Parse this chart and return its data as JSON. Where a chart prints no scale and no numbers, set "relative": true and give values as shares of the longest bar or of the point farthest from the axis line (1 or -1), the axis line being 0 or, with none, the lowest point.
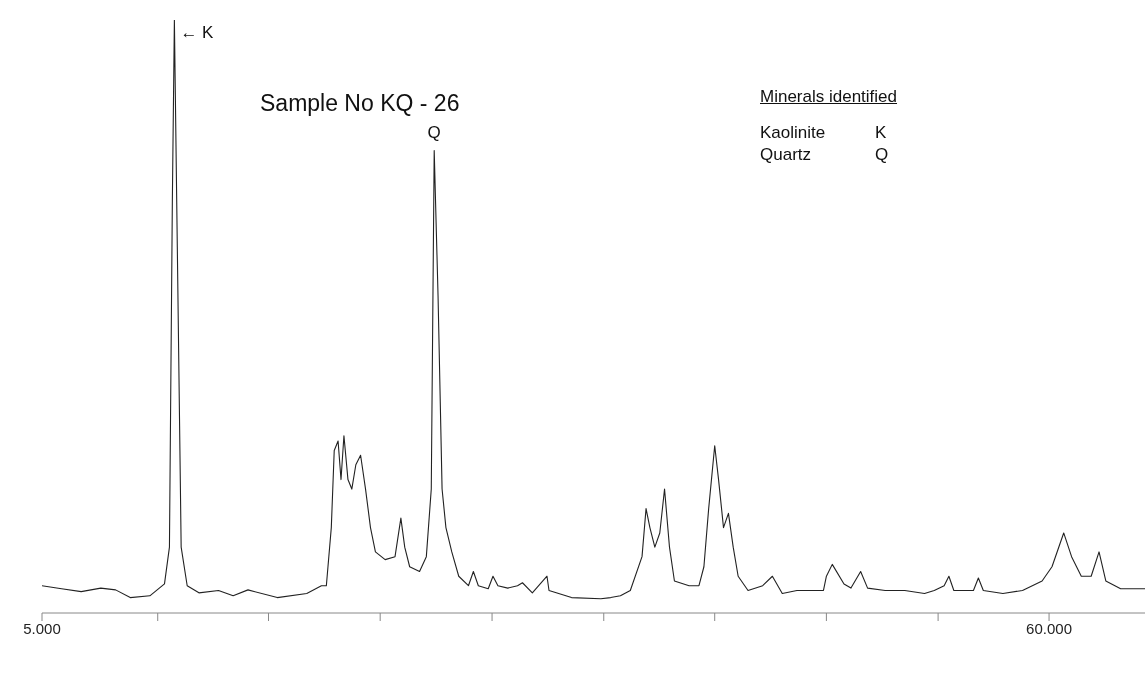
{
  "chart_data": {
    "type": "line",
    "title": "Sample No KQ - 26",
    "relative": true,
    "color": "#222222",
    "marker": "none",
    "line_style": "solid",
    "grid": false,
    "legend": false,
    "x": [
      5.0,
      6.07,
      7.14,
      8.21,
      9.02,
      9.82,
      10.89,
      11.69,
      11.96,
      12.12,
      12.23,
      12.39,
      12.6,
      12.93,
      13.57,
      14.64,
      15.44,
      16.25,
      17.85,
      19.46,
      20.26,
      20.53,
      20.8,
      20.96,
      21.17,
      21.33,
      21.49,
      21.71,
      21.92,
      22.14,
      22.4,
      22.67,
      22.94,
      23.21,
      23.74,
      24.28,
      24.6,
      24.81,
      25.08,
      25.62,
      25.99,
      26.26,
      26.42,
      26.63,
      26.85,
      27.06,
      27.38,
      27.76,
      28.29,
      28.56,
      28.83,
      29.37,
      29.63,
      29.9,
      30.44,
      30.97,
      31.24,
      31.78,
      32.58,
      32.69,
      33.92,
      35.52,
      36.06,
      36.59,
      37.13,
      37.77,
      37.99,
      38.2,
      38.47,
      38.74,
      39.0,
      39.27,
      39.54,
      40.34,
      40.88,
      41.15,
      41.41,
      41.74,
      41.95,
      42.22,
      42.49,
      42.75,
      43.02,
      43.56,
      44.36,
      44.89,
      45.43,
      46.23,
      47.04,
      47.68,
      47.84,
      48.16,
      48.8,
      49.18,
      49.71,
      50.09,
      51.05,
      52.12,
      53.2,
      53.73,
      54.27,
      54.53,
      54.8,
      55.87,
      56.14,
      56.41,
      57.48,
      58.55,
      59.62,
      60.16,
      60.8,
      61.23,
      61.76,
      62.3,
      62.73,
      63.1,
      63.91,
      65.24
    ],
    "values": [
      0.046,
      0.041,
      0.036,
      0.042,
      0.039,
      0.026,
      0.029,
      0.049,
      0.111,
      0.698,
      1.0,
      0.617,
      0.111,
      0.046,
      0.034,
      0.038,
      0.029,
      0.039,
      0.026,
      0.033,
      0.046,
      0.046,
      0.144,
      0.274,
      0.29,
      0.225,
      0.299,
      0.225,
      0.209,
      0.25,
      0.266,
      0.209,
      0.144,
      0.103,
      0.09,
      0.095,
      0.16,
      0.111,
      0.078,
      0.07,
      0.095,
      0.209,
      0.78,
      0.535,
      0.209,
      0.144,
      0.103,
      0.062,
      0.046,
      0.07,
      0.046,
      0.041,
      0.062,
      0.046,
      0.042,
      0.046,
      0.051,
      0.034,
      0.062,
      0.038,
      0.026,
      0.024,
      0.026,
      0.029,
      0.038,
      0.095,
      0.176,
      0.144,
      0.111,
      0.135,
      0.209,
      0.111,
      0.054,
      0.046,
      0.046,
      0.078,
      0.176,
      0.282,
      0.225,
      0.144,
      0.168,
      0.111,
      0.062,
      0.038,
      0.046,
      0.062,
      0.033,
      0.038,
      0.038,
      0.038,
      0.062,
      0.082,
      0.049,
      0.042,
      0.07,
      0.042,
      0.038,
      0.038,
      0.033,
      0.038,
      0.046,
      0.062,
      0.038,
      0.038,
      0.059,
      0.038,
      0.033,
      0.038,
      0.054,
      0.078,
      0.135,
      0.095,
      0.062,
      0.062,
      0.103,
      0.054,
      0.041,
      0.041
    ],
    "xlim": [
      5,
      65.24
    ],
    "xticks": [
      {
        "value": 5,
        "label": "5.000"
      },
      {
        "value": 11.32,
        "label": null
      },
      {
        "value": 17.37,
        "label": null
      },
      {
        "value": 23.47,
        "label": null
      },
      {
        "value": 29.58,
        "label": null
      },
      {
        "value": 35.68,
        "label": null
      },
      {
        "value": 41.74,
        "label": null
      },
      {
        "value": 47.84,
        "label": null
      },
      {
        "value": 53.94,
        "label": null
      },
      {
        "value": 60,
        "label": "60.000"
      }
    ],
    "annotations": [
      {
        "text": "← K",
        "x": 12.23,
        "y": 1.0
      },
      {
        "text": "Q",
        "x": 26.42,
        "y": 0.78
      },
      "Minerals identified",
      "Kaolinite",
      "K",
      "Quartz",
      "Q"
    ]
  }
}
